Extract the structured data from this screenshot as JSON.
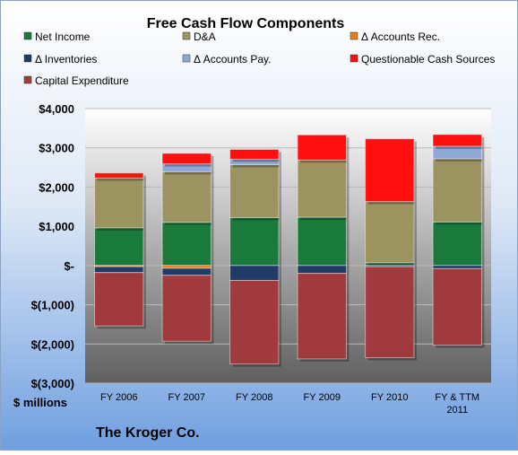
{
  "chart_data": {
    "type": "bar",
    "stacked": true,
    "title": "Free Cash Flow Components",
    "company": "The Kroger Co.",
    "unit_label": "$ millions",
    "categories": [
      "FY 2006",
      "FY 2007",
      "FY 2008",
      "FY 2009",
      "FY 2010",
      "FY & TTM 2011"
    ],
    "category_lines": [
      [
        "FY 2006"
      ],
      [
        "FY 2007"
      ],
      [
        "FY 2008"
      ],
      [
        "FY 2009"
      ],
      [
        "FY 2010"
      ],
      [
        "FY & TTM",
        "2011"
      ]
    ],
    "ylim": [
      -3000,
      4000
    ],
    "yticks": [
      4000,
      3000,
      2000,
      1000,
      0,
      -1000,
      -2000,
      -3000
    ],
    "ytick_labels": [
      "$4,000",
      "$3,000",
      "$2,000",
      "$1,000",
      "$-",
      "$(1,000)",
      "$(2,000)",
      "$(3,000)"
    ],
    "grid": true,
    "legend": "top",
    "series": [
      {
        "name": "Net Income",
        "color": "#1a7a3c",
        "values": [
          960,
          1100,
          1220,
          1230,
          70,
          1110
        ]
      },
      {
        "name": "D&A",
        "color": "#9b9460",
        "values": [
          1270,
          1290,
          1350,
          1460,
          1560,
          1610
        ]
      },
      {
        "name": "Δ Accounts Rec.",
        "color": "#e87b1a",
        "values": [
          -30,
          -70,
          0,
          0,
          0,
          0
        ]
      },
      {
        "name": "Δ Inventories",
        "color": "#1f3b66",
        "values": [
          -150,
          -180,
          -380,
          -200,
          -30,
          -80
        ]
      },
      {
        "name": "Δ Accounts Pay.",
        "color": "#8ea8d8",
        "values": [
          0,
          200,
          140,
          0,
          0,
          320
        ]
      },
      {
        "name": "Questionable Cash Sources",
        "color": "#ff0f0f",
        "values": [
          130,
          270,
          250,
          640,
          1600,
          300
        ]
      },
      {
        "name": "Capital Expenditure",
        "color": "#a03a3c",
        "values": [
          -1360,
          -1680,
          -2130,
          -2180,
          -2320,
          -1950
        ]
      }
    ]
  }
}
